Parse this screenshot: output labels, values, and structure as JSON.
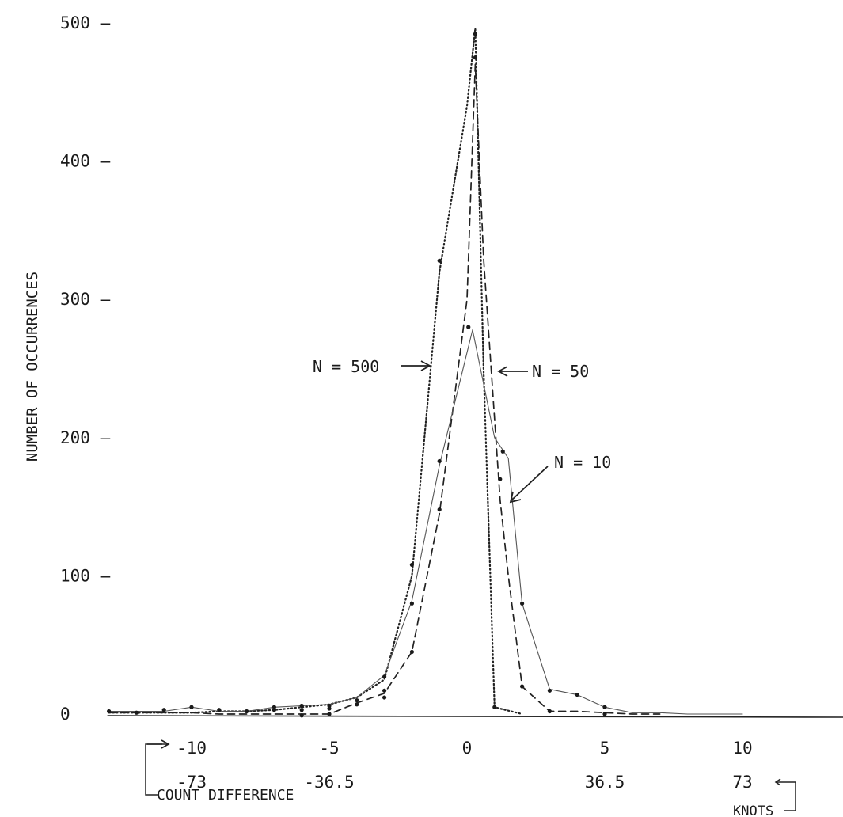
{
  "chart_data": {
    "type": "line",
    "title": "",
    "ylabel": "NUMBER OF OCCURRENCES",
    "xlabel_count": "COUNT DIFFERENCE",
    "xlabel_knots": "KNOTS",
    "xlim": [
      -13,
      13.5
    ],
    "ylim": [
      0,
      500
    ],
    "grid": false,
    "y_ticks": [
      {
        "value": 0,
        "label": "0"
      },
      {
        "value": 100,
        "label": "100 –"
      },
      {
        "value": 200,
        "label": "200 –"
      },
      {
        "value": 300,
        "label": "300 –"
      },
      {
        "value": 400,
        "label": "400 –"
      },
      {
        "value": 500,
        "label": "500 –"
      }
    ],
    "x_ticks_count": [
      {
        "value": -10,
        "label": "-10"
      },
      {
        "value": -5,
        "label": "-5"
      },
      {
        "value": 0,
        "label": "0"
      },
      {
        "value": 5,
        "label": "5"
      },
      {
        "value": 10,
        "label": "10"
      }
    ],
    "x_ticks_knots": [
      {
        "value": -10,
        "label": "-73"
      },
      {
        "value": -5,
        "label": "-36.5"
      },
      {
        "value": 5,
        "label": "36.5"
      },
      {
        "value": 10,
        "label": "73"
      }
    ],
    "series": [
      {
        "name": "N = 500",
        "style": "dotted",
        "x": [
          -13,
          -12,
          -11,
          -10,
          -9,
          -8,
          -7,
          -6,
          -5,
          -4,
          -3,
          -2,
          -1,
          0,
          0.3,
          0.6,
          1,
          2
        ],
        "y": [
          1,
          1,
          1,
          1,
          2,
          2,
          3,
          5,
          7,
          12,
          25,
          100,
          320,
          440,
          496,
          250,
          5,
          0
        ]
      },
      {
        "name": "N = 50",
        "style": "dashed",
        "x": [
          -13,
          -12,
          -11,
          -10,
          -9,
          -8,
          -7,
          -6,
          -5,
          -4,
          -3,
          -2,
          -1,
          0,
          0.3,
          0.6,
          1.2,
          1.5,
          2,
          3,
          4,
          5,
          6,
          7
        ],
        "y": [
          1,
          1,
          1,
          1,
          0,
          0,
          0,
          0,
          0,
          8,
          15,
          45,
          145,
          300,
          470,
          330,
          155,
          100,
          20,
          2,
          2,
          1,
          0,
          0
        ]
      },
      {
        "name": "N = 10",
        "style": "solid",
        "x": [
          -13,
          -12,
          -11,
          -10,
          -9,
          -8,
          -7,
          -6,
          -5,
          -4,
          -3,
          -2,
          -1,
          0.2,
          1,
          1.5,
          2,
          3,
          4,
          5,
          6,
          7,
          8,
          9,
          10
        ],
        "y": [
          2,
          2,
          2,
          5,
          2,
          2,
          5,
          6,
          7,
          12,
          28,
          82,
          180,
          278,
          200,
          185,
          80,
          18,
          14,
          5,
          1,
          1,
          0,
          0,
          0
        ]
      }
    ],
    "points": [
      {
        "x": -13,
        "y": 2
      },
      {
        "x": -12,
        "y": 1
      },
      {
        "x": -11,
        "y": 3
      },
      {
        "x": -10,
        "y": 5
      },
      {
        "x": -9,
        "y": 3
      },
      {
        "x": -8,
        "y": 2
      },
      {
        "x": -7,
        "y": 5
      },
      {
        "x": -7,
        "y": 3
      },
      {
        "x": -6,
        "y": 6
      },
      {
        "x": -6,
        "y": 3
      },
      {
        "x": -6,
        "y": -1
      },
      {
        "x": -5,
        "y": 6
      },
      {
        "x": -5,
        "y": 4
      },
      {
        "x": -5,
        "y": 0
      },
      {
        "x": -4,
        "y": 10
      },
      {
        "x": -4,
        "y": 7
      },
      {
        "x": -3,
        "y": 27
      },
      {
        "x": -3,
        "y": 17
      },
      {
        "x": -3,
        "y": 12
      },
      {
        "x": -2,
        "y": 108
      },
      {
        "x": -2,
        "y": 80
      },
      {
        "x": -2,
        "y": 45
      },
      {
        "x": -1,
        "y": 183
      },
      {
        "x": -1,
        "y": 148
      },
      {
        "x": -1,
        "y": 328
      },
      {
        "x": 0.3,
        "y": 492
      },
      {
        "x": 0.3,
        "y": 475
      },
      {
        "x": 0.05,
        "y": 280
      },
      {
        "x": 1.3,
        "y": 190
      },
      {
        "x": 1.2,
        "y": 170
      },
      {
        "x": 1,
        "y": 5
      },
      {
        "x": 2,
        "y": 80
      },
      {
        "x": 2,
        "y": 20
      },
      {
        "x": 3,
        "y": 17
      },
      {
        "x": 3,
        "y": 2
      },
      {
        "x": 4,
        "y": 14
      },
      {
        "x": 5,
        "y": 5
      },
      {
        "x": 5,
        "y": 0
      }
    ],
    "annotations": [
      {
        "text": "N = 500",
        "arrow": "right"
      },
      {
        "text": "N = 50",
        "arrow": "left"
      },
      {
        "text": "N = 10",
        "arrow": "down-left"
      }
    ]
  }
}
